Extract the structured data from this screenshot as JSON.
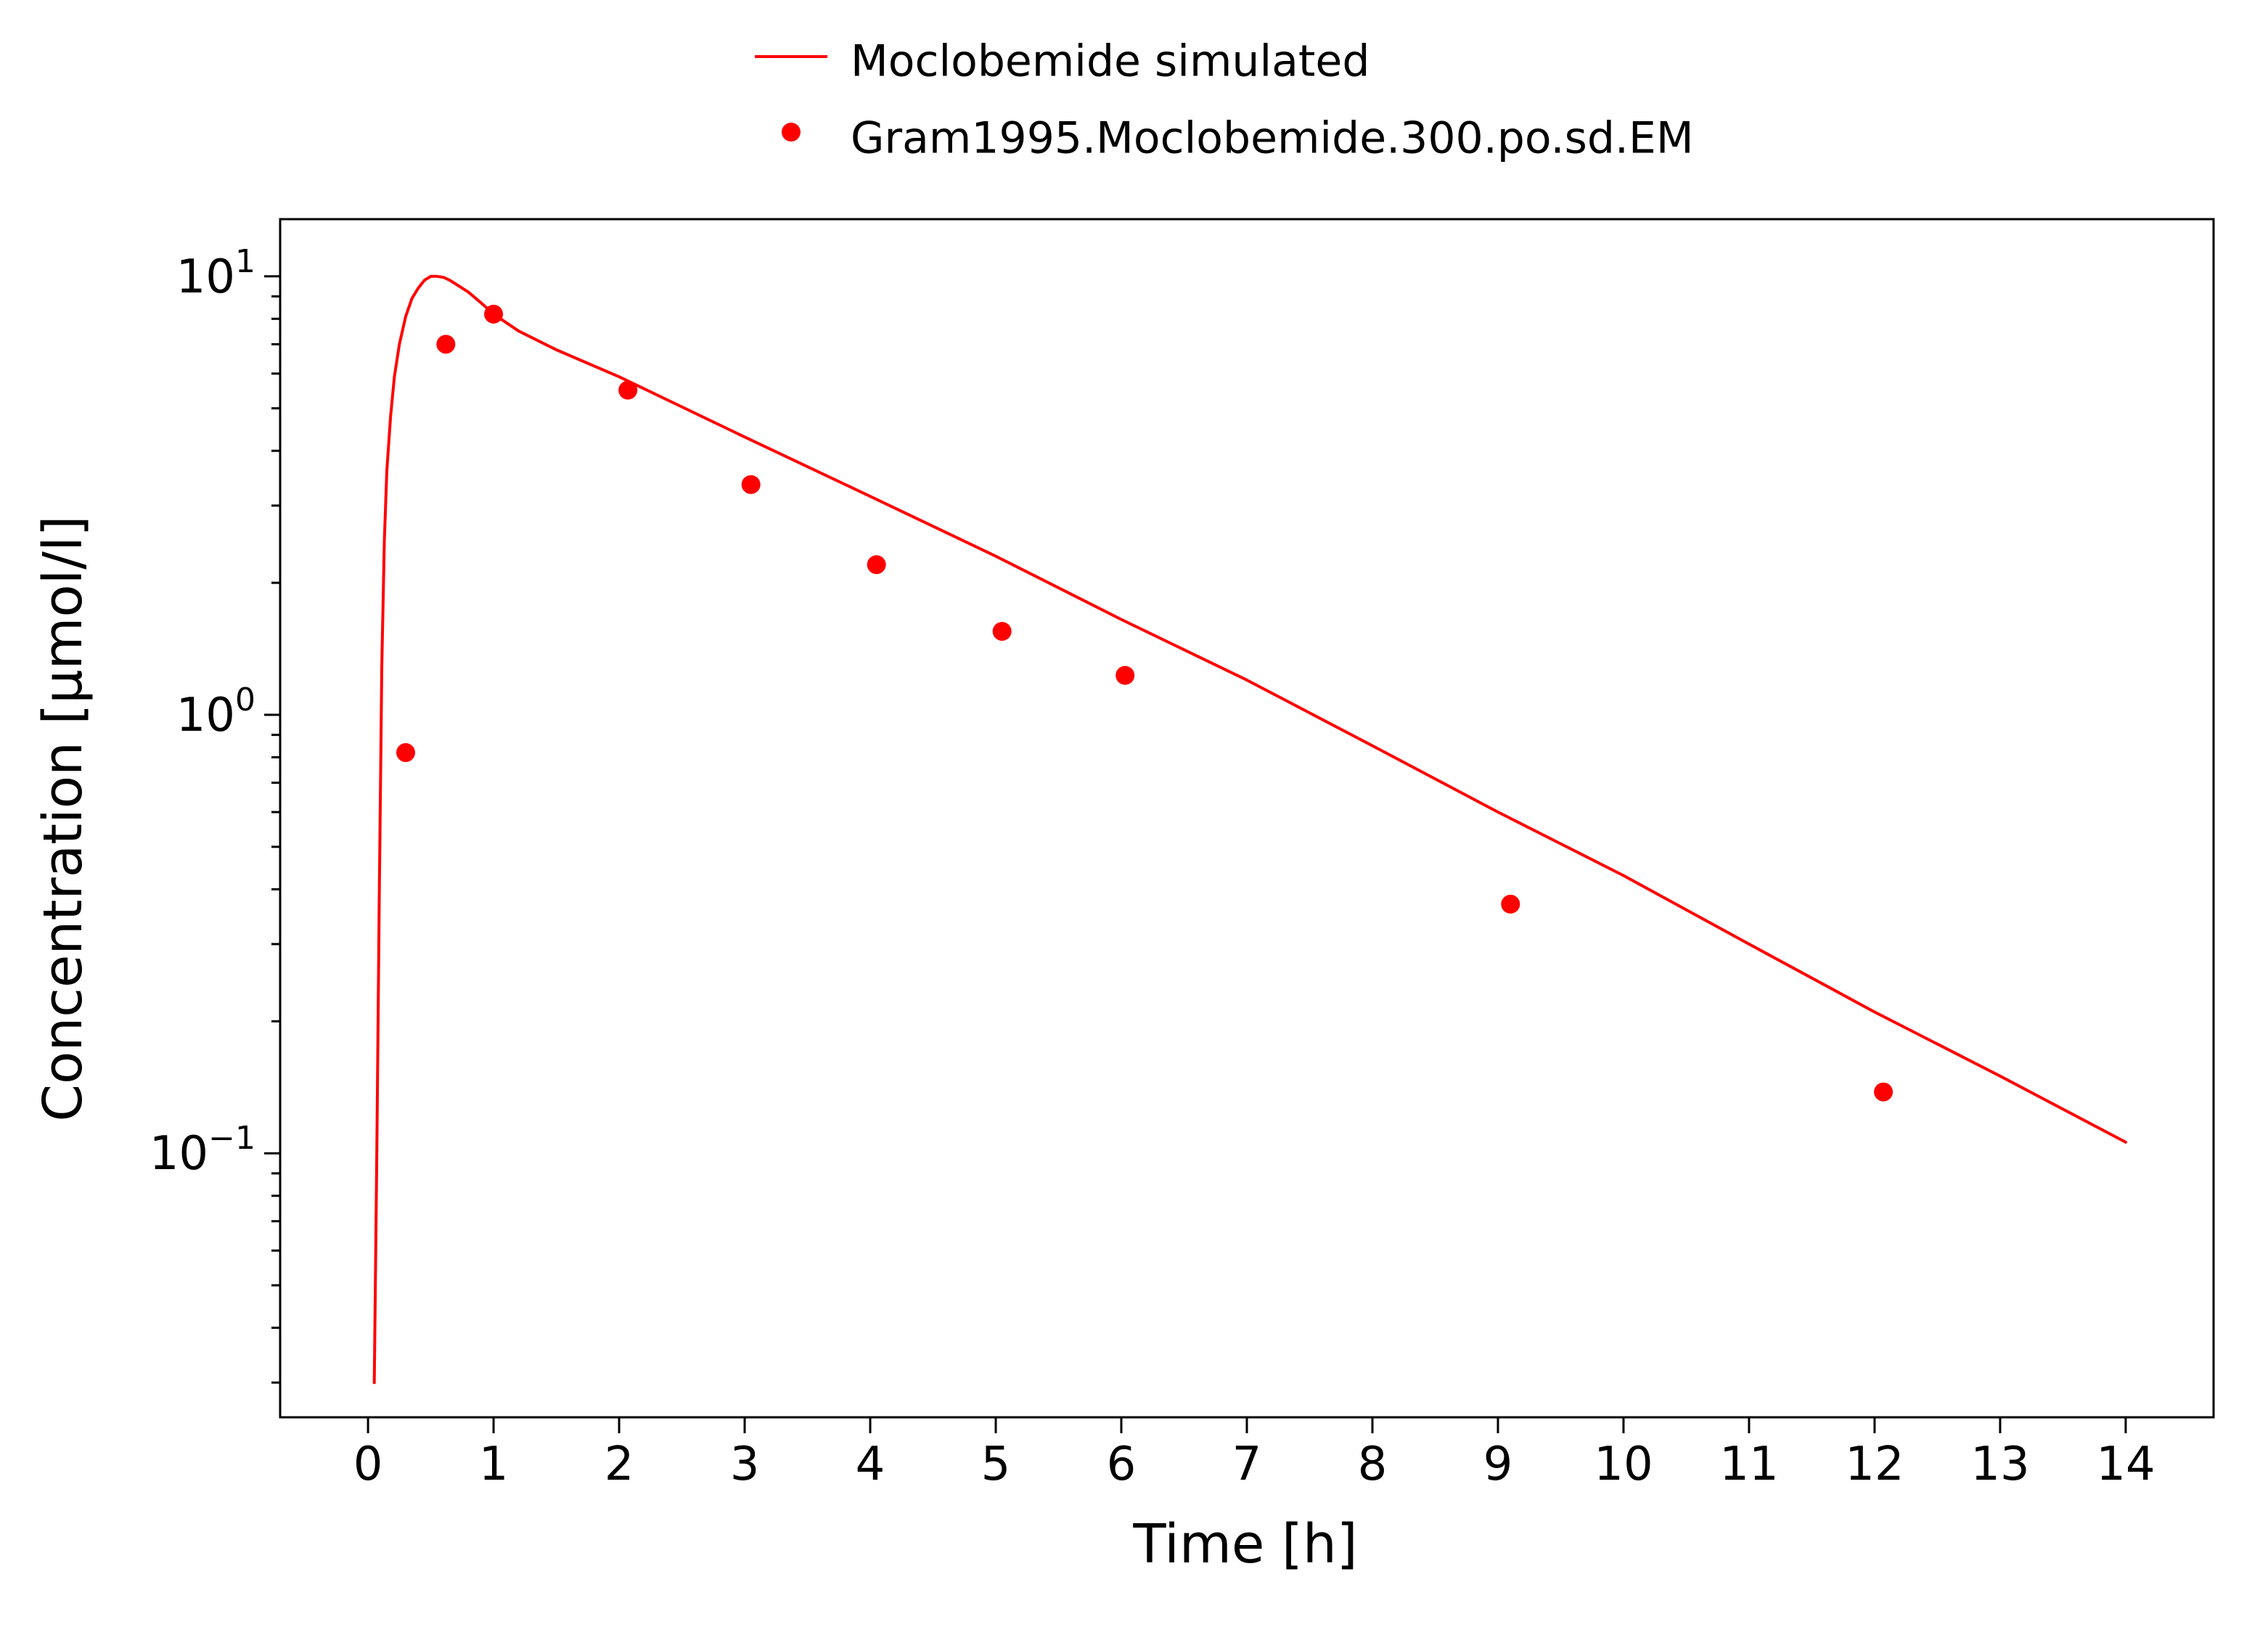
{
  "colors": {
    "series": "#ff0000",
    "axis": "#000000",
    "background": "#ffffff"
  },
  "chart_data": {
    "type": "line",
    "xlabel": "Time [h]",
    "ylabel": "Concentration [µmol/l]",
    "yscale": "log",
    "xlim": [
      -0.7,
      14.7
    ],
    "ylim": [
      0.025,
      13.5
    ],
    "xticks": [
      "0",
      "1",
      "2",
      "3",
      "4",
      "5",
      "6",
      "7",
      "8",
      "9",
      "10",
      "11",
      "12",
      "13",
      "14"
    ],
    "yticks": [
      {
        "base": "10",
        "exp": "1",
        "value": 10
      },
      {
        "base": "10",
        "exp": "0",
        "value": 1
      },
      {
        "base": "10",
        "exp": "−1",
        "value": 0.1
      }
    ],
    "grid": false,
    "legend_position": "top",
    "series": [
      {
        "name": "Moclobemide simulated",
        "style": "line",
        "color": "#ff0000",
        "x": [
          0.05,
          0.07,
          0.09,
          0.11,
          0.13,
          0.15,
          0.18,
          0.21,
          0.25,
          0.3,
          0.35,
          0.4,
          0.45,
          0.5,
          0.55,
          0.6,
          0.65,
          0.7,
          0.8,
          0.9,
          1.0,
          1.2,
          1.5,
          2.0,
          3.0,
          4.0,
          5.0,
          6.0,
          7.0,
          8.0,
          9.0,
          10.0,
          11.0,
          12.0,
          13.0,
          14.0
        ],
        "y": [
          0.03,
          0.1,
          0.4,
          1.3,
          2.5,
          3.6,
          4.8,
          5.9,
          7.0,
          8.1,
          8.9,
          9.4,
          9.8,
          10.0,
          10.0,
          9.95,
          9.8,
          9.6,
          9.2,
          8.7,
          8.2,
          7.5,
          6.8,
          5.9,
          4.3,
          3.15,
          2.3,
          1.65,
          1.2,
          0.85,
          0.6,
          0.43,
          0.3,
          0.21,
          0.15,
          0.106
        ]
      },
      {
        "name": "Gram1995.Moclobemide.300.po.sd.EM",
        "style": "scatter",
        "color": "#ff0000",
        "x": [
          0.3,
          0.62,
          1.0,
          2.07,
          3.05,
          4.05,
          5.05,
          6.03,
          9.1,
          12.07
        ],
        "y": [
          0.82,
          7.0,
          8.2,
          5.5,
          3.35,
          2.2,
          1.55,
          1.23,
          0.37,
          0.138
        ]
      }
    ]
  }
}
